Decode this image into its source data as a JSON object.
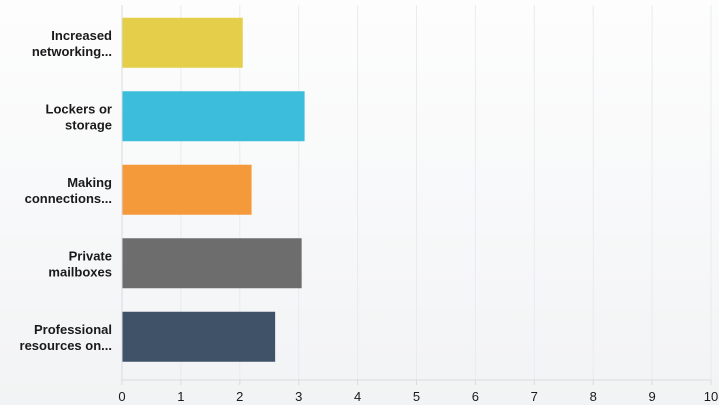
{
  "chart_data": {
    "type": "bar",
    "orientation": "horizontal",
    "categories": [
      "Increased\nnetworking...",
      "Lockers or\nstorage",
      "Making\nconnections...",
      "Private\nmailboxes",
      "Professional\nresources on..."
    ],
    "values": [
      2.05,
      3.1,
      2.2,
      3.05,
      2.6
    ],
    "colors": [
      "#e5cf4a",
      "#3cbddb",
      "#f59a3a",
      "#6d6d6d",
      "#3f5268"
    ],
    "xlim": [
      0,
      10
    ],
    "xticks": [
      0,
      1,
      2,
      3,
      4,
      5,
      6,
      7,
      8,
      9,
      10
    ],
    "grid": true
  }
}
